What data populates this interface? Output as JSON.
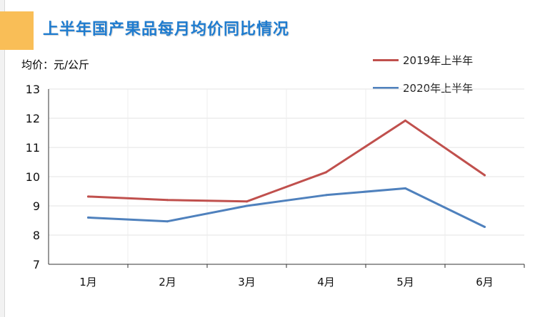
{
  "chart_data": {
    "type": "line",
    "title": "上半年国产果品每月均价同比情况",
    "ylabel": "均价：元/公斤",
    "xlabel": "",
    "categories": [
      "1月",
      "2月",
      "3月",
      "4月",
      "5月",
      "6月"
    ],
    "ylim": [
      7,
      13
    ],
    "yticks": [
      7,
      8,
      9,
      10,
      11,
      12,
      13
    ],
    "grid": true,
    "legend_position": "top-right",
    "series": [
      {
        "name": "2019年上半年",
        "color": "#c0504d",
        "values": [
          9.32,
          9.2,
          9.15,
          10.15,
          11.92,
          10.05
        ]
      },
      {
        "name": "2020年上半年",
        "color": "#4f81bd",
        "values": [
          8.6,
          8.47,
          9.0,
          9.37,
          9.6,
          8.28
        ]
      }
    ]
  }
}
